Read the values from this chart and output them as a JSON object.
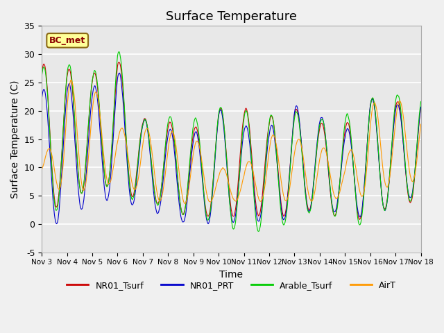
{
  "title": "Surface Temperature",
  "xlabel": "Time",
  "ylabel": "Surface Temperature (C)",
  "ylim": [
    -5,
    35
  ],
  "plot_bg_color": "#e8e8e8",
  "fig_bg_color": "#f0f0f0",
  "grid_color": "white",
  "annotation_text": "BC_met",
  "annotation_bg": "#ffff99",
  "annotation_border": "#8B6914",
  "legend_entries": [
    "NR01_Tsurf",
    "NR01_PRT",
    "Arable_Tsurf",
    "AirT"
  ],
  "line_colors": [
    "#cc0000",
    "#0000cc",
    "#00cc00",
    "#ff9900"
  ],
  "xtick_labels": [
    "Nov 3",
    "Nov 4",
    "Nov 5",
    "Nov 6",
    "Nov 7",
    "Nov 8",
    "Nov 9",
    "Nov 10",
    "Nov 11",
    "Nov 12",
    "Nov 13",
    "Nov 14",
    "Nov 15",
    "Nov 16",
    "Nov 17",
    "Nov 18"
  ],
  "ytick_labels": [
    -5,
    0,
    5,
    10,
    15,
    20,
    25,
    30,
    35
  ],
  "daily_peaks": [
    28,
    28,
    27,
    30,
    19,
    18,
    17,
    20,
    20,
    18,
    20,
    18,
    18,
    22,
    22
  ],
  "daily_troughs": [
    2,
    4,
    7,
    7,
    4,
    3,
    1,
    1,
    1,
    1,
    1,
    3,
    1,
    1,
    4
  ],
  "arable_boost": [
    1.5,
    1.5,
    1.5,
    2.5,
    1.5,
    1.5,
    1.5,
    1.5,
    1.5,
    1.5,
    1.5,
    1.5,
    1.5,
    1.5,
    1.5
  ],
  "air_lag": 2,
  "line_width": 0.8
}
